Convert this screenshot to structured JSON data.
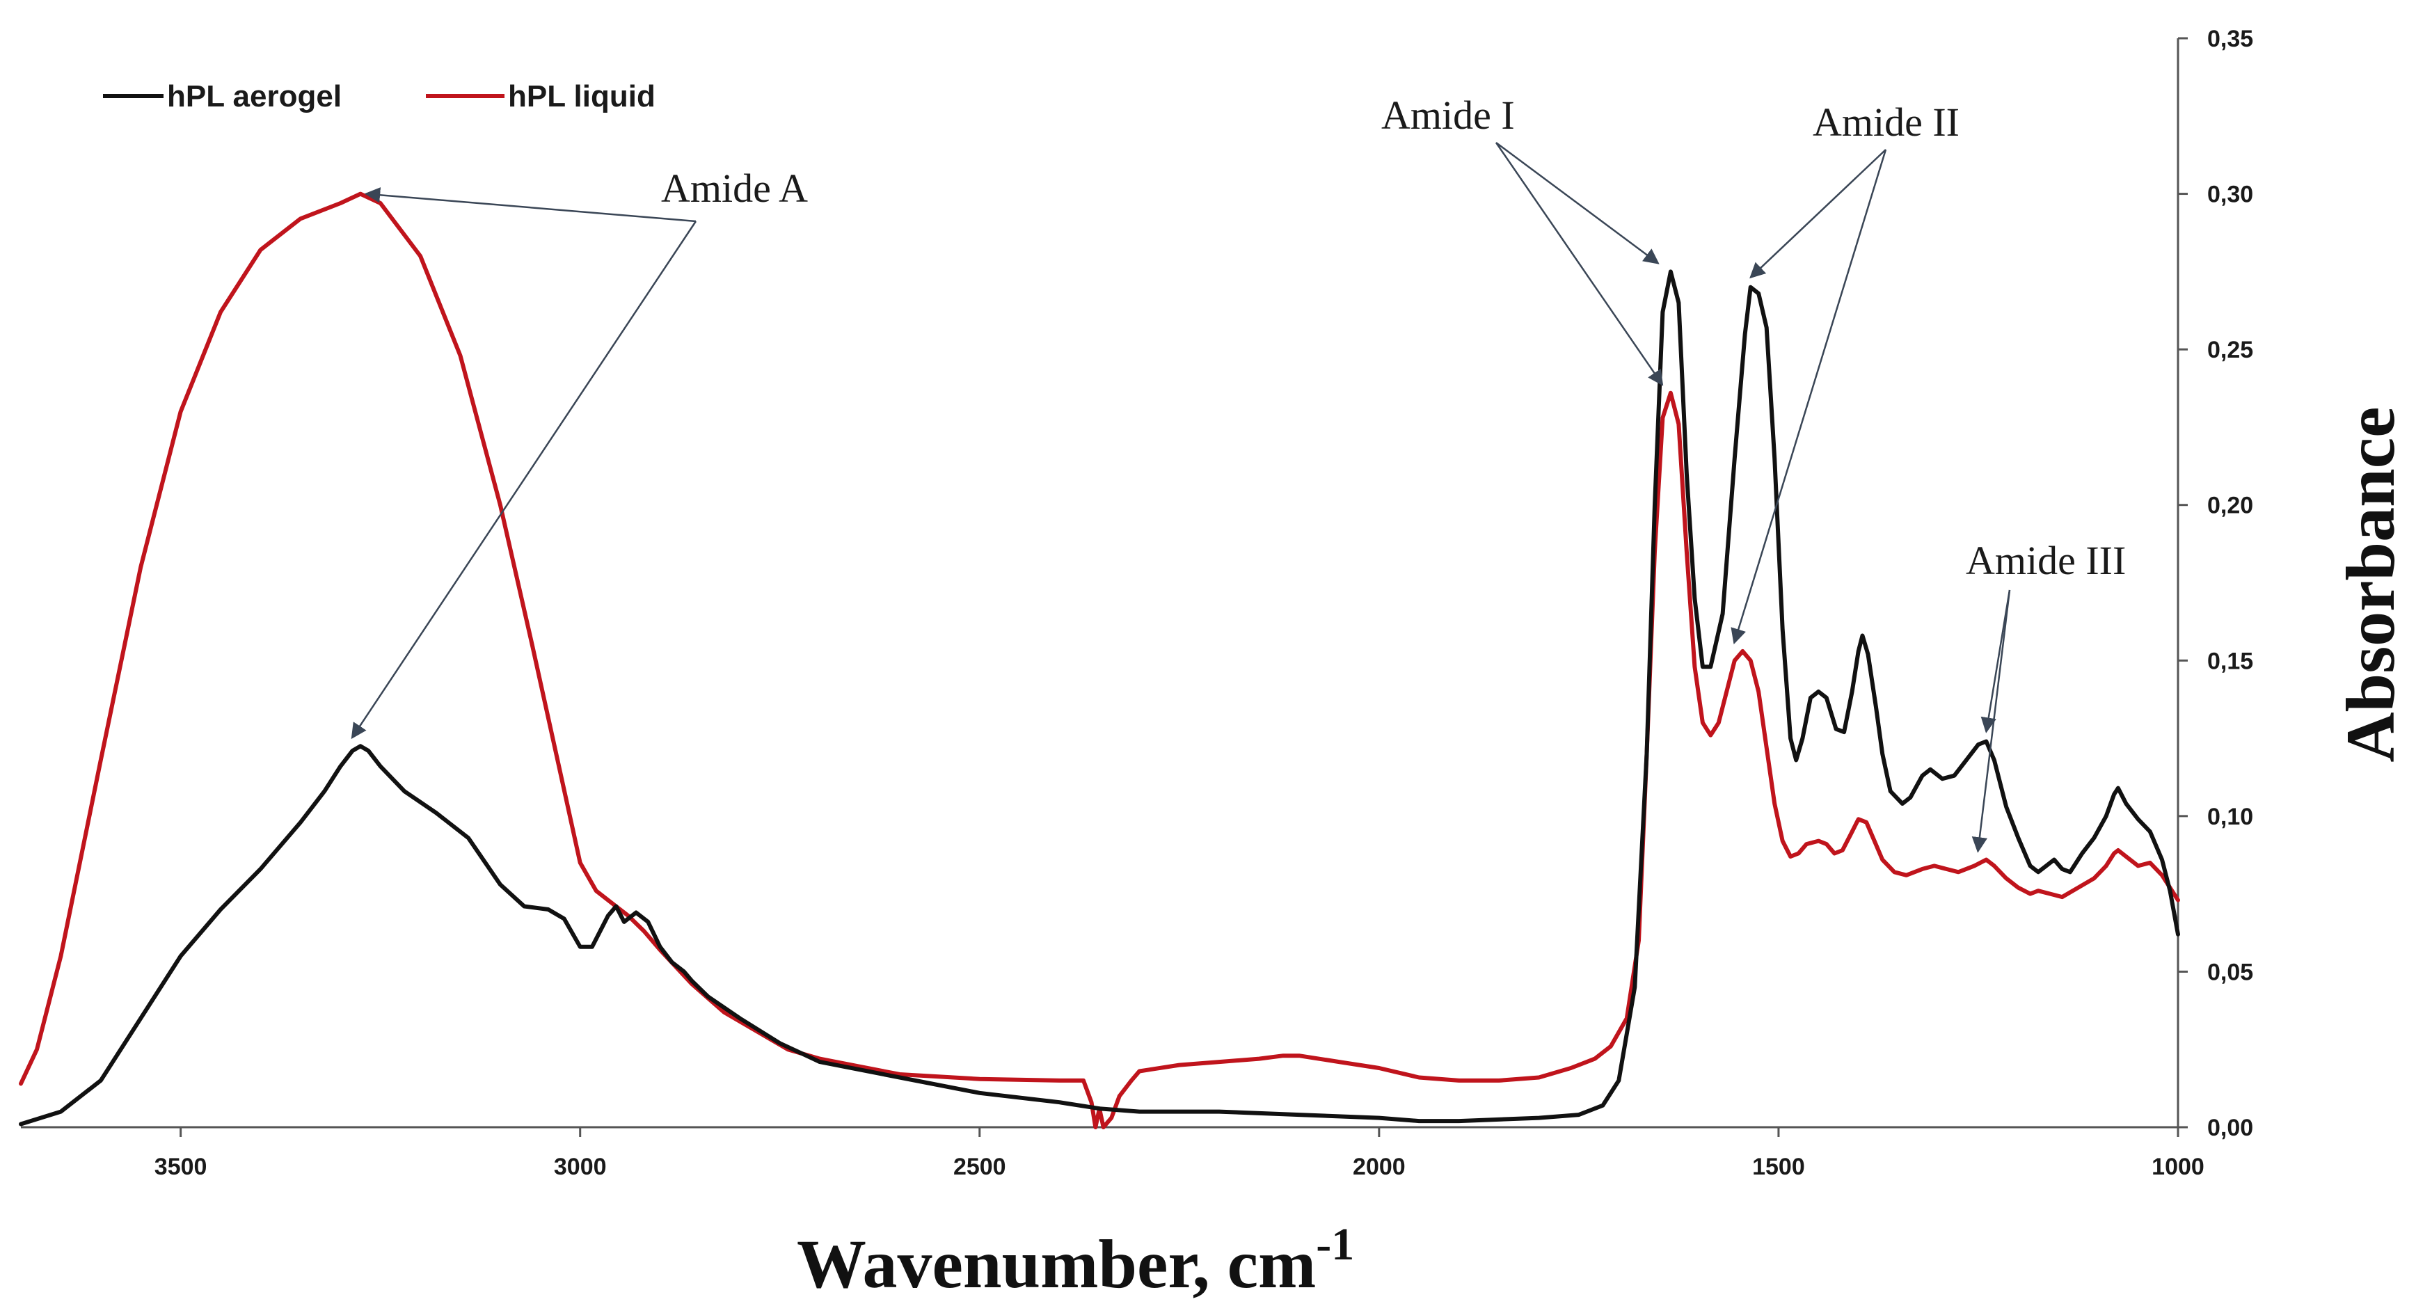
{
  "chart_data": {
    "type": "line",
    "title": "",
    "xlabel": "Wavenumber, cm",
    "xlabel_superscript": "-1",
    "ylabel": "Absorbance",
    "xlim": [
      3700,
      1000
    ],
    "ylim": [
      0,
      0.35
    ],
    "x_reversed": true,
    "y_axis_side": "right",
    "legend_position": "top-left",
    "grid": false,
    "x_ticks": [
      3500,
      3000,
      2500,
      2000,
      1500,
      1000
    ],
    "x_tick_labels": [
      "3500",
      "3000",
      "2500",
      "2000",
      "1500",
      "1000"
    ],
    "y_ticks": [
      0,
      0.05,
      0.1,
      0.15,
      0.2,
      0.25,
      0.3,
      0.35
    ],
    "y_tick_labels": [
      "0,00",
      "0,05",
      "0,10",
      "0,15",
      "0,20",
      "0,25",
      "0,30",
      "0,35"
    ],
    "series": [
      {
        "name": "hPL aerogel",
        "color": "#111111",
        "points": [
          [
            3700,
            0.001
          ],
          [
            3650,
            0.005
          ],
          [
            3600,
            0.015
          ],
          [
            3550,
            0.035
          ],
          [
            3500,
            0.055
          ],
          [
            3450,
            0.07
          ],
          [
            3400,
            0.083
          ],
          [
            3350,
            0.098
          ],
          [
            3320,
            0.108
          ],
          [
            3300,
            0.116
          ],
          [
            3285,
            0.121
          ],
          [
            3275,
            0.1225
          ],
          [
            3265,
            0.121
          ],
          [
            3250,
            0.116
          ],
          [
            3220,
            0.108
          ],
          [
            3180,
            0.101
          ],
          [
            3140,
            0.093
          ],
          [
            3100,
            0.078
          ],
          [
            3070,
            0.071
          ],
          [
            3040,
            0.07
          ],
          [
            3020,
            0.067
          ],
          [
            3000,
            0.058
          ],
          [
            2985,
            0.058
          ],
          [
            2965,
            0.068
          ],
          [
            2955,
            0.071
          ],
          [
            2945,
            0.066
          ],
          [
            2930,
            0.069
          ],
          [
            2915,
            0.066
          ],
          [
            2900,
            0.058
          ],
          [
            2885,
            0.053
          ],
          [
            2870,
            0.05
          ],
          [
            2860,
            0.047
          ],
          [
            2840,
            0.042
          ],
          [
            2800,
            0.035
          ],
          [
            2750,
            0.027
          ],
          [
            2700,
            0.021
          ],
          [
            2600,
            0.016
          ],
          [
            2500,
            0.011
          ],
          [
            2400,
            0.008
          ],
          [
            2350,
            0.006
          ],
          [
            2300,
            0.005
          ],
          [
            2200,
            0.005
          ],
          [
            2100,
            0.004
          ],
          [
            2000,
            0.003
          ],
          [
            1950,
            0.002
          ],
          [
            1900,
            0.002
          ],
          [
            1800,
            0.003
          ],
          [
            1750,
            0.004
          ],
          [
            1720,
            0.007
          ],
          [
            1700,
            0.015
          ],
          [
            1680,
            0.045
          ],
          [
            1665,
            0.12
          ],
          [
            1655,
            0.2
          ],
          [
            1645,
            0.262
          ],
          [
            1635,
            0.275
          ],
          [
            1625,
            0.265
          ],
          [
            1615,
            0.21
          ],
          [
            1605,
            0.17
          ],
          [
            1595,
            0.148
          ],
          [
            1585,
            0.148
          ],
          [
            1570,
            0.165
          ],
          [
            1555,
            0.215
          ],
          [
            1542,
            0.255
          ],
          [
            1535,
            0.27
          ],
          [
            1525,
            0.268
          ],
          [
            1515,
            0.257
          ],
          [
            1505,
            0.215
          ],
          [
            1495,
            0.16
          ],
          [
            1485,
            0.125
          ],
          [
            1478,
            0.118
          ],
          [
            1470,
            0.125
          ],
          [
            1460,
            0.138
          ],
          [
            1450,
            0.14
          ],
          [
            1440,
            0.138
          ],
          [
            1428,
            0.128
          ],
          [
            1418,
            0.127
          ],
          [
            1408,
            0.14
          ],
          [
            1400,
            0.153
          ],
          [
            1395,
            0.158
          ],
          [
            1388,
            0.152
          ],
          [
            1378,
            0.135
          ],
          [
            1370,
            0.12
          ],
          [
            1360,
            0.108
          ],
          [
            1345,
            0.104
          ],
          [
            1335,
            0.106
          ],
          [
            1320,
            0.113
          ],
          [
            1310,
            0.115
          ],
          [
            1295,
            0.112
          ],
          [
            1280,
            0.113
          ],
          [
            1265,
            0.118
          ],
          [
            1250,
            0.123
          ],
          [
            1240,
            0.124
          ],
          [
            1230,
            0.118
          ],
          [
            1215,
            0.103
          ],
          [
            1200,
            0.093
          ],
          [
            1185,
            0.084
          ],
          [
            1175,
            0.082
          ],
          [
            1165,
            0.084
          ],
          [
            1155,
            0.086
          ],
          [
            1145,
            0.083
          ],
          [
            1135,
            0.082
          ],
          [
            1120,
            0.088
          ],
          [
            1105,
            0.093
          ],
          [
            1090,
            0.1
          ],
          [
            1080,
            0.107
          ],
          [
            1075,
            0.109
          ],
          [
            1065,
            0.104
          ],
          [
            1050,
            0.099
          ],
          [
            1035,
            0.095
          ],
          [
            1020,
            0.086
          ],
          [
            1010,
            0.076
          ],
          [
            1000,
            0.062
          ]
        ]
      },
      {
        "name": "hPL liquid",
        "color": "#c0141c",
        "points": [
          [
            3700,
            0.014
          ],
          [
            3680,
            0.025
          ],
          [
            3650,
            0.055
          ],
          [
            3600,
            0.118
          ],
          [
            3550,
            0.18
          ],
          [
            3500,
            0.23
          ],
          [
            3450,
            0.262
          ],
          [
            3400,
            0.282
          ],
          [
            3350,
            0.292
          ],
          [
            3300,
            0.297
          ],
          [
            3275,
            0.3
          ],
          [
            3250,
            0.297
          ],
          [
            3200,
            0.28
          ],
          [
            3150,
            0.248
          ],
          [
            3100,
            0.2
          ],
          [
            3060,
            0.155
          ],
          [
            3030,
            0.12
          ],
          [
            3000,
            0.085
          ],
          [
            2980,
            0.076
          ],
          [
            2960,
            0.072
          ],
          [
            2940,
            0.068
          ],
          [
            2920,
            0.063
          ],
          [
            2900,
            0.057
          ],
          [
            2860,
            0.046
          ],
          [
            2820,
            0.037
          ],
          [
            2780,
            0.031
          ],
          [
            2740,
            0.025
          ],
          [
            2700,
            0.022
          ],
          [
            2600,
            0.017
          ],
          [
            2500,
            0.0155
          ],
          [
            2400,
            0.015
          ],
          [
            2370,
            0.015
          ],
          [
            2360,
            0.008
          ],
          [
            2355,
            0.0
          ],
          [
            2350,
            0.006
          ],
          [
            2345,
            0.0
          ],
          [
            2335,
            0.003
          ],
          [
            2325,
            0.01
          ],
          [
            2310,
            0.015
          ],
          [
            2300,
            0.018
          ],
          [
            2250,
            0.02
          ],
          [
            2200,
            0.021
          ],
          [
            2150,
            0.022
          ],
          [
            2120,
            0.023
          ],
          [
            2100,
            0.023
          ],
          [
            2050,
            0.021
          ],
          [
            2000,
            0.019
          ],
          [
            1950,
            0.016
          ],
          [
            1900,
            0.015
          ],
          [
            1850,
            0.015
          ],
          [
            1800,
            0.016
          ],
          [
            1760,
            0.019
          ],
          [
            1730,
            0.022
          ],
          [
            1710,
            0.026
          ],
          [
            1690,
            0.035
          ],
          [
            1675,
            0.06
          ],
          [
            1665,
            0.12
          ],
          [
            1655,
            0.185
          ],
          [
            1645,
            0.228
          ],
          [
            1635,
            0.236
          ],
          [
            1625,
            0.226
          ],
          [
            1615,
            0.185
          ],
          [
            1605,
            0.148
          ],
          [
            1595,
            0.13
          ],
          [
            1585,
            0.126
          ],
          [
            1575,
            0.13
          ],
          [
            1565,
            0.14
          ],
          [
            1555,
            0.15
          ],
          [
            1545,
            0.153
          ],
          [
            1535,
            0.15
          ],
          [
            1525,
            0.14
          ],
          [
            1515,
            0.122
          ],
          [
            1505,
            0.104
          ],
          [
            1495,
            0.092
          ],
          [
            1485,
            0.087
          ],
          [
            1475,
            0.088
          ],
          [
            1465,
            0.091
          ],
          [
            1450,
            0.092
          ],
          [
            1440,
            0.091
          ],
          [
            1430,
            0.088
          ],
          [
            1420,
            0.089
          ],
          [
            1410,
            0.094
          ],
          [
            1400,
            0.099
          ],
          [
            1390,
            0.098
          ],
          [
            1380,
            0.092
          ],
          [
            1370,
            0.086
          ],
          [
            1355,
            0.082
          ],
          [
            1340,
            0.081
          ],
          [
            1320,
            0.083
          ],
          [
            1305,
            0.084
          ],
          [
            1290,
            0.083
          ],
          [
            1275,
            0.082
          ],
          [
            1255,
            0.084
          ],
          [
            1240,
            0.086
          ],
          [
            1230,
            0.084
          ],
          [
            1215,
            0.08
          ],
          [
            1200,
            0.077
          ],
          [
            1185,
            0.075
          ],
          [
            1175,
            0.076
          ],
          [
            1160,
            0.075
          ],
          [
            1145,
            0.074
          ],
          [
            1125,
            0.077
          ],
          [
            1105,
            0.08
          ],
          [
            1090,
            0.084
          ],
          [
            1080,
            0.088
          ],
          [
            1075,
            0.089
          ],
          [
            1065,
            0.087
          ],
          [
            1050,
            0.084
          ],
          [
            1035,
            0.085
          ],
          [
            1020,
            0.081
          ],
          [
            1010,
            0.077
          ],
          [
            1000,
            0.073
          ]
        ]
      }
    ],
    "annotations": [
      {
        "text": "Amide A",
        "arrows_to": [
          {
            "series": "hPL liquid",
            "x": 3275,
            "y": 0.3
          },
          {
            "series": "hPL aerogel",
            "x": 3275,
            "y": 0.1225
          }
        ]
      },
      {
        "text": "Amide I",
        "arrows_to": [
          {
            "series": "hPL aerogel",
            "x": 1635,
            "y": 0.275
          },
          {
            "series": "hPL liquid",
            "x": 1635,
            "y": 0.236
          }
        ]
      },
      {
        "text": "Amide II",
        "arrows_to": [
          {
            "series": "hPL aerogel",
            "x": 1535,
            "y": 0.27
          },
          {
            "series": "hPL liquid",
            "x": 1545,
            "y": 0.153
          }
        ]
      },
      {
        "text": "Amide III",
        "arrows_to": [
          {
            "series": "hPL aerogel",
            "x": 1240,
            "y": 0.124
          },
          {
            "series": "hPL liquid",
            "x": 1240,
            "y": 0.086
          }
        ]
      }
    ]
  }
}
